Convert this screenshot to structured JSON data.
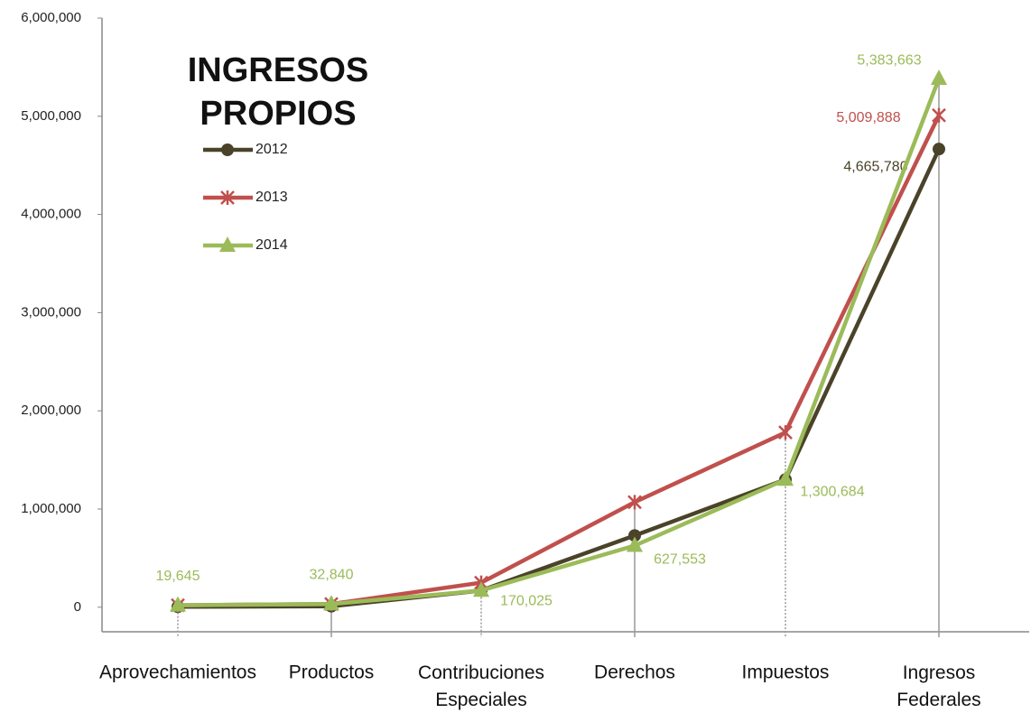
{
  "chart_data": {
    "type": "line",
    "title": "INGRESOS PROPIOS",
    "categories": [
      "Aprovechamientos",
      "Productos",
      "Contribuciones Especiales",
      "Derechos",
      "Impuestos",
      "Ingresos Federales"
    ],
    "series": [
      {
        "name": "2012",
        "color": "#4a4329",
        "marker": "circle",
        "values": [
          5000,
          10000,
          170000,
          730000,
          1300000,
          4665780
        ],
        "value_labels": [
          null,
          null,
          null,
          null,
          null,
          "4,665,780"
        ]
      },
      {
        "name": "2013",
        "color": "#c0504d",
        "marker": "x",
        "values": [
          20000,
          33000,
          250000,
          1070000,
          1780000,
          5009888
        ],
        "value_labels": [
          null,
          null,
          null,
          null,
          null,
          "5,009,888"
        ]
      },
      {
        "name": "2014",
        "color": "#9bbb59",
        "marker": "triangle",
        "values": [
          19645,
          32840,
          170025,
          627553,
          1300684,
          5383663
        ],
        "value_labels": [
          "19,645",
          "32,840",
          "170,025",
          "627,553",
          "1,300,684",
          "5,383,663"
        ]
      }
    ],
    "ylim": [
      -250000,
      6000000
    ],
    "yticks": [
      0,
      {
        "value": 1000000,
        "label": "1,000,000"
      },
      {
        "value": 2000000,
        "label": "2,000,000"
      },
      {
        "value": 3000000,
        "label": "3,000,000"
      },
      {
        "value": 4000000,
        "label": "4,000,000"
      },
      {
        "value": 5000000,
        "label": "5,000,000"
      },
      {
        "value": 6000000,
        "label": "6,000,000"
      }
    ],
    "legend": "upper left",
    "grid": false
  }
}
